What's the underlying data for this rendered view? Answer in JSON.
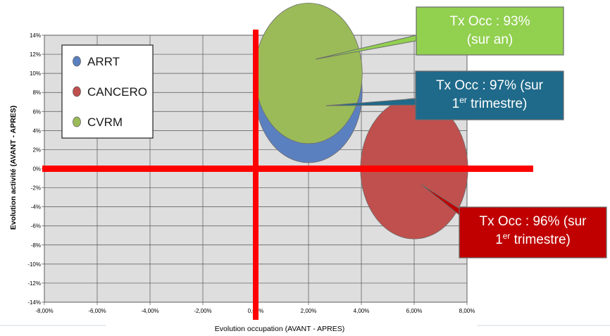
{
  "chart_data": {
    "type": "scatter",
    "subtype": "bubble",
    "xlabel": "Evolution occupation (AVANT - APRES)",
    "ylabel": "Evolution activité (AVANT - APRES)",
    "xlim": [
      -0.08,
      0.08
    ],
    "ylim": [
      -0.14,
      0.14
    ],
    "x_ticks": [
      "-8,00%",
      "-6,00%",
      "-4,00%",
      "-2,00%",
      "0,00%",
      "2,00%",
      "4,00%",
      "6,00%",
      "8,00%"
    ],
    "y_ticks": [
      "14%",
      "12%",
      "10%",
      "8%",
      "6%",
      "4%",
      "2%",
      "0%",
      "-2%",
      "-4%",
      "-6%",
      "-8%",
      "-10%",
      "-12%",
      "-14%"
    ],
    "grid": true,
    "legend_position": "top-left",
    "series": [
      {
        "name": "ARRT",
        "color": "#5b80c0",
        "x": 0.02,
        "y": 0.08,
        "size": 0.022
      },
      {
        "name": "CANCERO",
        "color": "#c0504d",
        "x": 0.06,
        "y": 0.0,
        "size": 0.022
      },
      {
        "name": "CVRM",
        "color": "#9bbb59",
        "x": 0.02,
        "y": 0.1,
        "size": 0.022
      }
    ],
    "reference_lines": {
      "color": "#ff0000",
      "x": 0.0,
      "y": 0.0
    },
    "annotations": [
      {
        "target": "CVRM",
        "lines": [
          "Tx Occ : 93%",
          "(sur an)"
        ],
        "color": "#92d050"
      },
      {
        "target": "ARRT",
        "lines": [
          "Tx Occ : 97% (sur",
          "1er trimestre)"
        ],
        "color": "#1f6a8a"
      },
      {
        "target": "CANCERO",
        "lines": [
          "Tx Occ : 96% (sur",
          "1er trimestre)"
        ],
        "color": "#c00000"
      }
    ]
  }
}
